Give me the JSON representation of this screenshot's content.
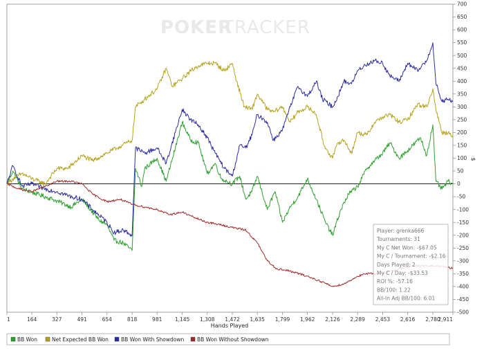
{
  "watermark": {
    "bold": "POKER",
    "light": "TRACKER"
  },
  "chart_data": {
    "type": "line",
    "title": "",
    "xlabel": "Hands Played",
    "ylabel": "$",
    "xlim": [
      1,
      2911
    ],
    "ylim": [
      -500,
      700
    ],
    "x_ticks": [
      "1",
      "164",
      "327",
      "491",
      "654",
      "818",
      "981",
      "1,145",
      "1,308",
      "1,472",
      "1,635",
      "1,799",
      "1,962",
      "2,126",
      "2,289",
      "2,453",
      "2,616",
      "2,780",
      "2,911"
    ],
    "y_ticks": [
      700,
      650,
      600,
      550,
      500,
      450,
      400,
      350,
      300,
      250,
      200,
      150,
      100,
      50,
      0,
      -50,
      -100,
      -150,
      -200,
      -250,
      -300,
      -350,
      -400,
      -450,
      -500
    ],
    "series": [
      {
        "name": "BB Won",
        "color": "#2ea02e",
        "points": [
          [
            1,
            0
          ],
          [
            40,
            50
          ],
          [
            100,
            -20
          ],
          [
            200,
            -40
          ],
          [
            300,
            -60
          ],
          [
            420,
            -90
          ],
          [
            491,
            -60
          ],
          [
            600,
            -140
          ],
          [
            654,
            -160
          ],
          [
            700,
            -220
          ],
          [
            760,
            -230
          ],
          [
            818,
            -260
          ],
          [
            840,
            60
          ],
          [
            881,
            -10
          ],
          [
            900,
            60
          ],
          [
            981,
            100
          ],
          [
            1040,
            10
          ],
          [
            1100,
            140
          ],
          [
            1145,
            240
          ],
          [
            1200,
            170
          ],
          [
            1250,
            160
          ],
          [
            1308,
            40
          ],
          [
            1360,
            80
          ],
          [
            1400,
            20
          ],
          [
            1472,
            0
          ],
          [
            1520,
            30
          ],
          [
            1560,
            -60
          ],
          [
            1600,
            -30
          ],
          [
            1635,
            30
          ],
          [
            1700,
            -100
          ],
          [
            1750,
            -30
          ],
          [
            1799,
            -150
          ],
          [
            1850,
            -90
          ],
          [
            1900,
            -50
          ],
          [
            1962,
            20
          ],
          [
            2020,
            -60
          ],
          [
            2080,
            -150
          ],
          [
            2126,
            -200
          ],
          [
            2180,
            -100
          ],
          [
            2230,
            -40
          ],
          [
            2289,
            -10
          ],
          [
            2350,
            60
          ],
          [
            2400,
            90
          ],
          [
            2453,
            120
          ],
          [
            2500,
            160
          ],
          [
            2560,
            100
          ],
          [
            2616,
            130
          ],
          [
            2700,
            180
          ],
          [
            2740,
            110
          ],
          [
            2780,
            230
          ],
          [
            2800,
            10
          ],
          [
            2840,
            -20
          ],
          [
            2880,
            10
          ],
          [
            2911,
            0
          ]
        ]
      },
      {
        "name": "Net Expected BB Won",
        "color": "#b5a31c",
        "points": [
          [
            1,
            0
          ],
          [
            40,
            20
          ],
          [
            100,
            40
          ],
          [
            164,
            20
          ],
          [
            250,
            0
          ],
          [
            327,
            60
          ],
          [
            400,
            60
          ],
          [
            491,
            110
          ],
          [
            560,
            90
          ],
          [
            654,
            120
          ],
          [
            720,
            140
          ],
          [
            818,
            170
          ],
          [
            840,
            300
          ],
          [
            900,
            330
          ],
          [
            981,
            370
          ],
          [
            1040,
            450
          ],
          [
            1080,
            380
          ],
          [
            1145,
            410
          ],
          [
            1200,
            440
          ],
          [
            1250,
            460
          ],
          [
            1308,
            470
          ],
          [
            1360,
            470
          ],
          [
            1420,
            440
          ],
          [
            1472,
            470
          ],
          [
            1500,
            400
          ],
          [
            1550,
            300
          ],
          [
            1600,
            290
          ],
          [
            1635,
            350
          ],
          [
            1700,
            290
          ],
          [
            1740,
            280
          ],
          [
            1799,
            300
          ],
          [
            1850,
            240
          ],
          [
            1900,
            280
          ],
          [
            1962,
            300
          ],
          [
            2020,
            270
          ],
          [
            2070,
            150
          ],
          [
            2126,
            100
          ],
          [
            2160,
            160
          ],
          [
            2200,
            170
          ],
          [
            2250,
            120
          ],
          [
            2289,
            200
          ],
          [
            2350,
            190
          ],
          [
            2400,
            240
          ],
          [
            2453,
            260
          ],
          [
            2500,
            270
          ],
          [
            2560,
            240
          ],
          [
            2616,
            250
          ],
          [
            2680,
            310
          ],
          [
            2740,
            300
          ],
          [
            2780,
            370
          ],
          [
            2800,
            290
          ],
          [
            2840,
            200
          ],
          [
            2880,
            200
          ],
          [
            2911,
            190
          ]
        ]
      },
      {
        "name": "BB Won With Showdown",
        "color": "#2c2ca0",
        "points": [
          [
            1,
            0
          ],
          [
            40,
            70
          ],
          [
            100,
            -10
          ],
          [
            164,
            0
          ],
          [
            250,
            -20
          ],
          [
            327,
            -30
          ],
          [
            420,
            -50
          ],
          [
            491,
            -60
          ],
          [
            560,
            -100
          ],
          [
            654,
            -150
          ],
          [
            700,
            -190
          ],
          [
            760,
            -180
          ],
          [
            818,
            -200
          ],
          [
            840,
            140
          ],
          [
            900,
            120
          ],
          [
            981,
            140
          ],
          [
            1040,
            80
          ],
          [
            1100,
            200
          ],
          [
            1145,
            290
          ],
          [
            1200,
            250
          ],
          [
            1250,
            230
          ],
          [
            1308,
            180
          ],
          [
            1360,
            120
          ],
          [
            1420,
            60
          ],
          [
            1472,
            30
          ],
          [
            1520,
            150
          ],
          [
            1560,
            140
          ],
          [
            1600,
            190
          ],
          [
            1635,
            270
          ],
          [
            1700,
            240
          ],
          [
            1740,
            170
          ],
          [
            1799,
            210
          ],
          [
            1850,
            300
          ],
          [
            1900,
            380
          ],
          [
            1962,
            340
          ],
          [
            2020,
            400
          ],
          [
            2060,
            330
          ],
          [
            2126,
            300
          ],
          [
            2160,
            340
          ],
          [
            2200,
            400
          ],
          [
            2250,
            390
          ],
          [
            2289,
            440
          ],
          [
            2330,
            460
          ],
          [
            2400,
            480
          ],
          [
            2453,
            470
          ],
          [
            2500,
            420
          ],
          [
            2560,
            400
          ],
          [
            2616,
            470
          ],
          [
            2680,
            440
          ],
          [
            2740,
            480
          ],
          [
            2780,
            550
          ],
          [
            2800,
            390
          ],
          [
            2840,
            320
          ],
          [
            2880,
            330
          ],
          [
            2911,
            320
          ]
        ]
      },
      {
        "name": "BB Won Without Showdown",
        "color": "#a02c2c",
        "points": [
          [
            1,
            0
          ],
          [
            80,
            -20
          ],
          [
            164,
            -30
          ],
          [
            250,
            -10
          ],
          [
            327,
            10
          ],
          [
            420,
            10
          ],
          [
            491,
            0
          ],
          [
            560,
            -40
          ],
          [
            654,
            -70
          ],
          [
            740,
            -60
          ],
          [
            818,
            -80
          ],
          [
            900,
            -90
          ],
          [
            981,
            -100
          ],
          [
            1060,
            -120
          ],
          [
            1145,
            -110
          ],
          [
            1220,
            -130
          ],
          [
            1308,
            -150
          ],
          [
            1400,
            -160
          ],
          [
            1472,
            -170
          ],
          [
            1560,
            -180
          ],
          [
            1635,
            -230
          ],
          [
            1700,
            -300
          ],
          [
            1760,
            -330
          ],
          [
            1850,
            -340
          ],
          [
            1962,
            -360
          ],
          [
            2050,
            -380
          ],
          [
            2126,
            -400
          ],
          [
            2200,
            -390
          ],
          [
            2289,
            -360
          ],
          [
            2350,
            -350
          ],
          [
            2453,
            -350
          ],
          [
            2560,
            -330
          ],
          [
            2650,
            -320
          ],
          [
            2740,
            -320
          ],
          [
            2820,
            -320
          ],
          [
            2911,
            -330
          ]
        ]
      }
    ],
    "stats": {
      "lines": [
        "Player: grenka666",
        "Tournaments: 31",
        "My C Net Won: -$67.05",
        "My C / Tournament: -$2.16",
        "Days Played: 2",
        "My C / Day: -$33.53",
        "ROI %: -57.16",
        "BB/100: 1.22",
        "All-In Adj BB/100: 6.01"
      ]
    }
  }
}
